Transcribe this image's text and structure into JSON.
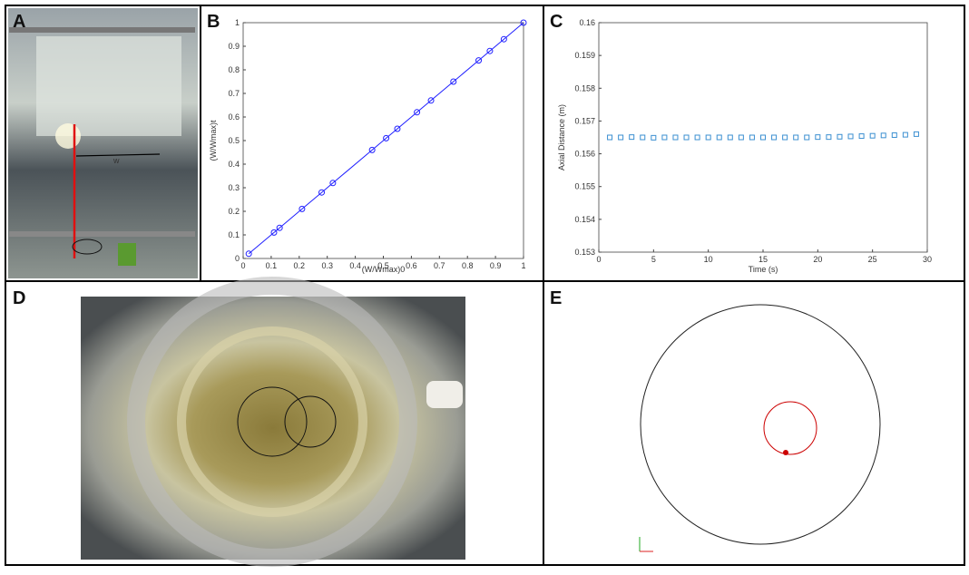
{
  "panels": {
    "labels": [
      "A",
      "B",
      "C",
      "D",
      "E"
    ],
    "width_label": "w"
  },
  "chart_data": [
    {
      "type": "line",
      "marker": "circle",
      "color": "#1f1fff",
      "line": true,
      "xlabel": "(W/Wmax)0",
      "ylabel": "(W/Wmax)t",
      "x": [
        0.02,
        0.11,
        0.13,
        0.21,
        0.28,
        0.32,
        0.46,
        0.51,
        0.55,
        0.62,
        0.67,
        0.75,
        0.84,
        0.88,
        0.93,
        1
      ],
      "values": [
        0.02,
        0.11,
        0.13,
        0.21,
        0.28,
        0.32,
        0.46,
        0.51,
        0.55,
        0.62,
        0.67,
        0.75,
        0.84,
        0.88,
        0.93,
        1
      ],
      "xlim": [
        0,
        1
      ],
      "ylim": [
        0,
        1
      ],
      "xticks": [
        0,
        0.1,
        0.2,
        0.3,
        0.4,
        0.5,
        0.6,
        0.7,
        0.8,
        0.9,
        1
      ],
      "yticks": [
        0,
        0.1,
        0.2,
        0.3,
        0.4,
        0.5,
        0.6,
        0.7,
        0.8,
        0.9,
        1
      ]
    },
    {
      "type": "scatter",
      "marker": "square",
      "color": "#3b8fd1",
      "line": false,
      "xlabel": "Time (s)",
      "ylabel": "Axial Distance (m)",
      "x": [
        1,
        2,
        3,
        4,
        5,
        6,
        7,
        8,
        9,
        10,
        11,
        12,
        13,
        14,
        15,
        16,
        17,
        18,
        19,
        20,
        21,
        22,
        23,
        24,
        25,
        26,
        27,
        28,
        29
      ],
      "values": [
        0.1565,
        0.1565,
        0.15651,
        0.1565,
        0.15649,
        0.1565,
        0.1565,
        0.1565,
        0.1565,
        0.1565,
        0.1565,
        0.1565,
        0.1565,
        0.1565,
        0.1565,
        0.1565,
        0.1565,
        0.1565,
        0.1565,
        0.15651,
        0.15651,
        0.15652,
        0.15653,
        0.15654,
        0.15655,
        0.15656,
        0.15657,
        0.15658,
        0.1566
      ],
      "xlim": [
        0,
        30
      ],
      "ylim": [
        0.153,
        0.16
      ],
      "xticks": [
        0,
        5,
        10,
        15,
        20,
        25,
        30
      ],
      "yticks": [
        0.153,
        0.154,
        0.155,
        0.156,
        0.157,
        0.158,
        0.159,
        0.16
      ]
    }
  ]
}
